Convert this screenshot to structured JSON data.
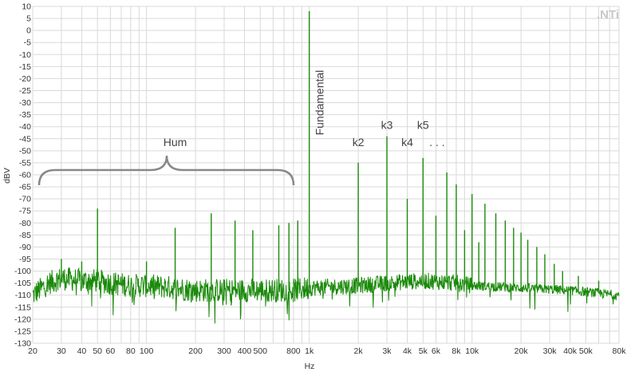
{
  "logo_text": ".NTi",
  "colors": {
    "trace": "#1a8a0a",
    "grid": "#d9d9d9",
    "annotation": "#888888"
  },
  "chart_data": {
    "type": "line",
    "title": "",
    "xlabel": "Hz",
    "ylabel": "dBV",
    "x_scale": "log",
    "xlim": [
      20,
      80000
    ],
    "ylim": [
      -130,
      10
    ],
    "grid": true,
    "x_ticks": [
      {
        "v": 20,
        "label": "20"
      },
      {
        "v": 30,
        "label": "30"
      },
      {
        "v": 40,
        "label": "40"
      },
      {
        "v": 50,
        "label": "50"
      },
      {
        "v": 60,
        "label": "60"
      },
      {
        "v": 80,
        "label": "80"
      },
      {
        "v": 100,
        "label": "100"
      },
      {
        "v": 200,
        "label": "200"
      },
      {
        "v": 300,
        "label": "300"
      },
      {
        "v": 400,
        "label": "400"
      },
      {
        "v": 500,
        "label": "500"
      },
      {
        "v": 800,
        "label": "800"
      },
      {
        "v": 1000,
        "label": "1k"
      },
      {
        "v": 2000,
        "label": "2k"
      },
      {
        "v": 3000,
        "label": "3k"
      },
      {
        "v": 4000,
        "label": "4k"
      },
      {
        "v": 5000,
        "label": "5k"
      },
      {
        "v": 6000,
        "label": "6k"
      },
      {
        "v": 8000,
        "label": "8k"
      },
      {
        "v": 10000,
        "label": "10k"
      },
      {
        "v": 20000,
        "label": "20k"
      },
      {
        "v": 30000,
        "label": "30k"
      },
      {
        "v": 40000,
        "label": "40k"
      },
      {
        "v": 50000,
        "label": "50k"
      },
      {
        "v": 80000,
        "label": "80k"
      }
    ],
    "y_ticks": [
      10,
      5,
      0,
      -5,
      -10,
      -15,
      -20,
      -25,
      -30,
      -35,
      -40,
      -45,
      -50,
      -55,
      -60,
      -65,
      -70,
      -75,
      -80,
      -85,
      -90,
      -95,
      -100,
      -105,
      -110,
      -115,
      -120,
      -125,
      -130
    ],
    "noise_floor": {
      "x": [
        20,
        25,
        30,
        40,
        50,
        60,
        80,
        100,
        150,
        200,
        300,
        500,
        800,
        1000,
        2000,
        3000,
        5000,
        8000,
        10000,
        20000,
        40000,
        80000
      ],
      "y": [
        -110,
        -105,
        -103,
        -104,
        -104,
        -105,
        -106,
        -106,
        -107,
        -108,
        -108,
        -108,
        -108,
        -107,
        -106,
        -105,
        -104,
        -105,
        -106,
        -107,
        -108,
        -110
      ]
    },
    "peaks": [
      {
        "f": 30,
        "db": -95
      },
      {
        "f": 40,
        "db": -96
      },
      {
        "f": 50,
        "db": -74
      },
      {
        "f": 100,
        "db": -96
      },
      {
        "f": 150,
        "db": -82
      },
      {
        "f": 250,
        "db": -76
      },
      {
        "f": 350,
        "db": -79
      },
      {
        "f": 450,
        "db": -83
      },
      {
        "f": 650,
        "db": -81
      },
      {
        "f": 750,
        "db": -80
      },
      {
        "f": 850,
        "db": -79
      },
      {
        "f": 1000,
        "db": 8
      },
      {
        "f": 2000,
        "db": -55
      },
      {
        "f": 3000,
        "db": -44
      },
      {
        "f": 4000,
        "db": -70
      },
      {
        "f": 5000,
        "db": -53
      },
      {
        "f": 6000,
        "db": -77
      },
      {
        "f": 7000,
        "db": -59
      },
      {
        "f": 8000,
        "db": -64
      },
      {
        "f": 9000,
        "db": -83
      },
      {
        "f": 10000,
        "db": -68
      },
      {
        "f": 11000,
        "db": -88
      },
      {
        "f": 12000,
        "db": -72
      },
      {
        "f": 14000,
        "db": -76
      },
      {
        "f": 16000,
        "db": -79
      },
      {
        "f": 18000,
        "db": -82
      },
      {
        "f": 20000,
        "db": -84
      },
      {
        "f": 22000,
        "db": -87
      },
      {
        "f": 25000,
        "db": -90
      },
      {
        "f": 28000,
        "db": -93
      },
      {
        "f": 32000,
        "db": -97
      },
      {
        "f": 36000,
        "db": -100
      },
      {
        "f": 45000,
        "db": -102
      },
      {
        "f": 60000,
        "db": -104
      }
    ],
    "annotations": [
      {
        "text": "Hum",
        "x": 150,
        "y": -48
      },
      {
        "text": "k2",
        "x": 2000,
        "y": -48
      },
      {
        "text": "k3",
        "x": 3000,
        "y": -41
      },
      {
        "text": "k4",
        "x": 4000,
        "y": -48
      },
      {
        "text": "k5",
        "x": 5000,
        "y": -41
      },
      {
        "text": ". . .",
        "x": 6100,
        "y": -48
      },
      {
        "text": "Fundamental",
        "x": 1000,
        "y": -30
      }
    ]
  }
}
